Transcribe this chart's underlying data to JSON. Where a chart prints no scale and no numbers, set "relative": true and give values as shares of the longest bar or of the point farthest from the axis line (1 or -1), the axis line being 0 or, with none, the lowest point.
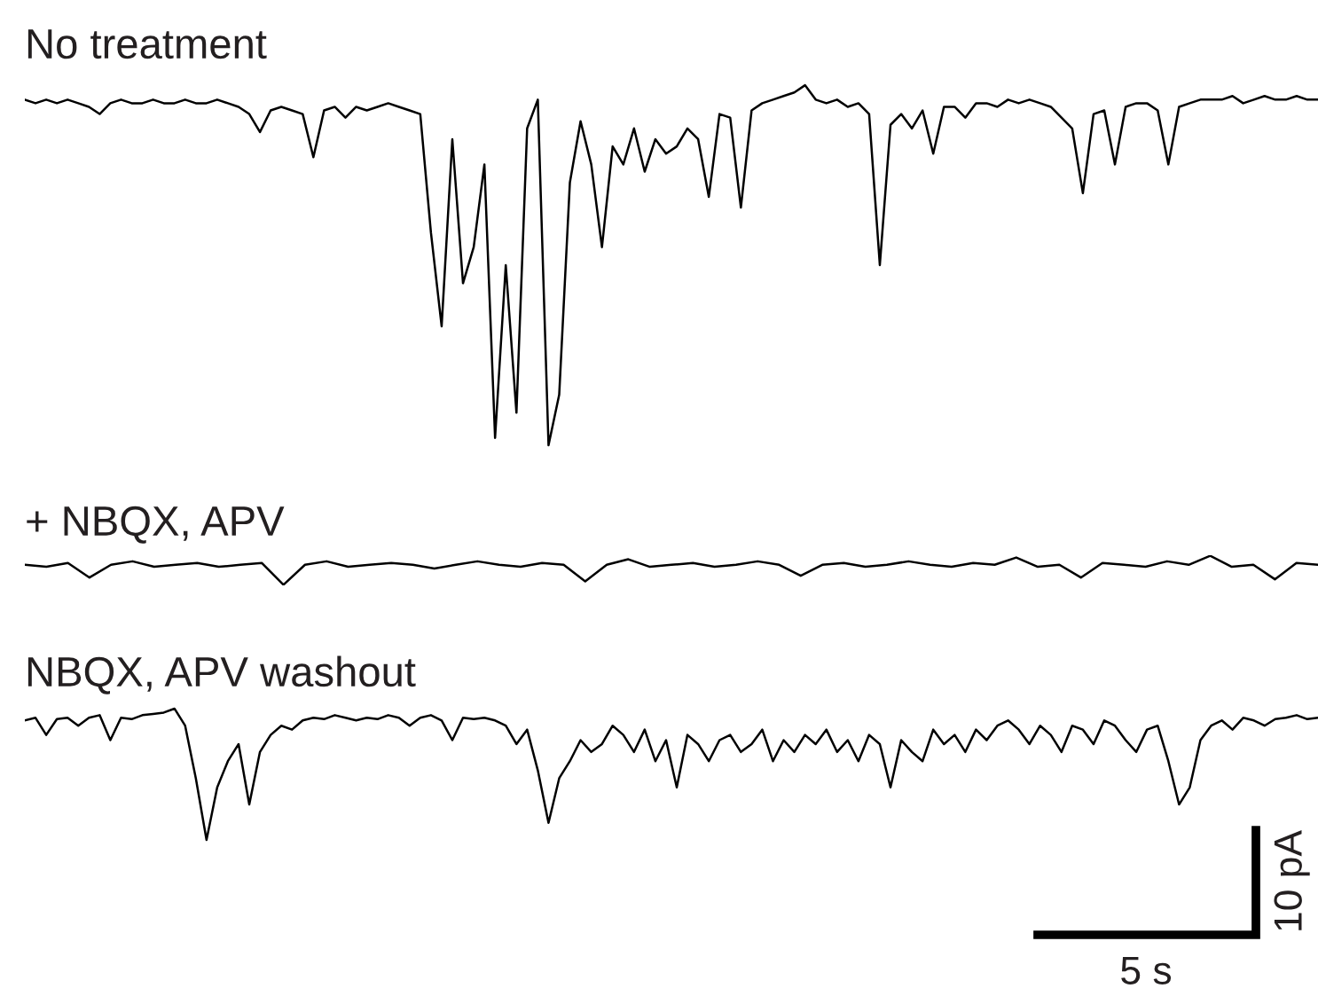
{
  "chart_data": [
    {
      "type": "line",
      "title": "No treatment",
      "relative": true,
      "categories": [
        null,
        null,
        null,
        null,
        null,
        null,
        null,
        null,
        null,
        null,
        null,
        null,
        null,
        null,
        null,
        null,
        null,
        null,
        null,
        null,
        null,
        null,
        null,
        null,
        null,
        null,
        null,
        null,
        null,
        null,
        null,
        null,
        null,
        null,
        null,
        null,
        null,
        null,
        null,
        null,
        null,
        null,
        null,
        null,
        null,
        null,
        null,
        null,
        null,
        null,
        null,
        null,
        null,
        null,
        null,
        null,
        null,
        null,
        null,
        null,
        null,
        null,
        null,
        null,
        null,
        null,
        null,
        null,
        null,
        null,
        null,
        null,
        null,
        null,
        null,
        null,
        null,
        null,
        null,
        null,
        null,
        null,
        null,
        null,
        null,
        null,
        null,
        null,
        null,
        null,
        null,
        null,
        null,
        null,
        null,
        null,
        null,
        null,
        null,
        null,
        null,
        null,
        null,
        null,
        null,
        null,
        null,
        null,
        null,
        null,
        null,
        null,
        null,
        null,
        null,
        null,
        null,
        null,
        null,
        null,
        null,
        null
      ],
      "series": [
        {
          "color": "#000000",
          "values": [
            0.96,
            0.95,
            0.96,
            0.95,
            0.96,
            0.95,
            0.94,
            0.92,
            0.95,
            0.96,
            0.95,
            0.95,
            0.96,
            0.95,
            0.95,
            0.96,
            0.95,
            0.95,
            0.96,
            0.95,
            0.94,
            0.92,
            0.87,
            0.93,
            0.94,
            0.93,
            0.92,
            0.8,
            0.93,
            0.94,
            0.91,
            0.94,
            0.93,
            0.94,
            0.95,
            0.94,
            0.93,
            0.92,
            0.59,
            0.33,
            0.85,
            0.45,
            0.55,
            0.78,
            0.02,
            0.5,
            0.09,
            0.88,
            0.96,
            0,
            0.14,
            0.73,
            0.9,
            0.78,
            0.55,
            0.83,
            0.78,
            0.88,
            0.76,
            0.85,
            0.81,
            0.83,
            0.88,
            0.85,
            0.69,
            0.92,
            0.91,
            0.66,
            0.93,
            0.95,
            0.96,
            0.97,
            0.98,
            1,
            0.96,
            0.95,
            0.96,
            0.94,
            0.95,
            0.92,
            0.5,
            0.89,
            0.92,
            0.88,
            0.93,
            0.81,
            0.94,
            0.94,
            0.91,
            0.95,
            0.95,
            0.94,
            0.96,
            0.95,
            0.96,
            0.95,
            0.94,
            0.91,
            0.88,
            0.7,
            0.92,
            0.93,
            0.78,
            0.94,
            0.95,
            0.95,
            0.93,
            0.78,
            0.94,
            0.95,
            0.96,
            0.96,
            0.96,
            0.97,
            0.95,
            0.96,
            0.97,
            0.96,
            0.96,
            0.97,
            0.96,
            0.96
          ]
        }
      ]
    },
    {
      "type": "line",
      "title": "+ NBQX, APV",
      "relative": true,
      "categories": [
        null,
        null,
        null,
        null,
        null,
        null,
        null,
        null,
        null,
        null,
        null,
        null,
        null,
        null,
        null,
        null,
        null,
        null,
        null,
        null,
        null,
        null,
        null,
        null,
        null,
        null,
        null,
        null,
        null,
        null,
        null,
        null,
        null,
        null,
        null,
        null,
        null,
        null,
        null,
        null,
        null,
        null,
        null,
        null,
        null,
        null,
        null,
        null,
        null,
        null,
        null,
        null,
        null,
        null,
        null,
        null,
        null,
        null,
        null,
        null,
        null
      ],
      "series": [
        {
          "color": "#000000",
          "values": [
            0.69,
            0.62,
            0.75,
            0.25,
            0.69,
            0.81,
            0.62,
            0.69,
            0.75,
            0.62,
            0.69,
            0.75,
            0,
            0.69,
            0.81,
            0.62,
            0.69,
            0.75,
            0.69,
            0.56,
            0.69,
            0.81,
            0.69,
            0.62,
            0.75,
            0.69,
            0.12,
            0.69,
            0.88,
            0.62,
            0.69,
            0.75,
            0.62,
            0.69,
            0.81,
            0.69,
            0.31,
            0.69,
            0.75,
            0.62,
            0.69,
            0.81,
            0.69,
            0.62,
            0.75,
            0.69,
            0.94,
            0.62,
            0.69,
            0.25,
            0.75,
            0.69,
            0.62,
            0.81,
            0.69,
            1,
            0.62,
            0.69,
            0.19,
            0.75,
            0.69
          ]
        }
      ]
    },
    {
      "type": "line",
      "title": "NBQX, APV washout",
      "relative": true,
      "annotations": [
        "10 pA",
        "5 s"
      ],
      "categories": [
        null,
        null,
        null,
        null,
        null,
        null,
        null,
        null,
        null,
        null,
        null,
        null,
        null,
        null,
        null,
        null,
        null,
        null,
        null,
        null,
        null,
        null,
        null,
        null,
        null,
        null,
        null,
        null,
        null,
        null,
        null,
        null,
        null,
        null,
        null,
        null,
        null,
        null,
        null,
        null,
        null,
        null,
        null,
        null,
        null,
        null,
        null,
        null,
        null,
        null,
        null,
        null,
        null,
        null,
        null,
        null,
        null,
        null,
        null,
        null,
        null,
        null,
        null,
        null,
        null,
        null,
        null,
        null,
        null,
        null,
        null,
        null,
        null,
        null,
        null,
        null,
        null,
        null,
        null,
        null,
        null,
        null,
        null,
        null,
        null,
        null,
        null,
        null,
        null,
        null,
        null,
        null,
        null,
        null,
        null,
        null,
        null,
        null,
        null,
        null,
        null,
        null,
        null,
        null,
        null,
        null,
        null,
        null,
        null,
        null,
        null,
        null,
        null,
        null,
        null,
        null,
        null,
        null,
        null,
        null,
        null,
        null
      ],
      "series": [
        {
          "color": "#000000",
          "values": [
            0.91,
            0.93,
            0.8,
            0.92,
            0.93,
            0.87,
            0.93,
            0.95,
            0.76,
            0.93,
            0.92,
            0.95,
            0.96,
            0.97,
            1,
            0.87,
            0.47,
            0,
            0.4,
            0.6,
            0.73,
            0.27,
            0.67,
            0.8,
            0.87,
            0.84,
            0.91,
            0.93,
            0.92,
            0.95,
            0.93,
            0.91,
            0.93,
            0.92,
            0.95,
            0.93,
            0.87,
            0.93,
            0.95,
            0.91,
            0.76,
            0.93,
            0.92,
            0.93,
            0.91,
            0.87,
            0.73,
            0.84,
            0.53,
            0.13,
            0.47,
            0.6,
            0.76,
            0.67,
            0.73,
            0.87,
            0.8,
            0.67,
            0.84,
            0.6,
            0.76,
            0.4,
            0.8,
            0.73,
            0.6,
            0.76,
            0.8,
            0.67,
            0.73,
            0.84,
            0.6,
            0.76,
            0.67,
            0.8,
            0.73,
            0.84,
            0.67,
            0.76,
            0.6,
            0.8,
            0.73,
            0.4,
            0.76,
            0.67,
            0.6,
            0.84,
            0.73,
            0.8,
            0.67,
            0.84,
            0.76,
            0.87,
            0.91,
            0.84,
            0.73,
            0.87,
            0.8,
            0.67,
            0.87,
            0.84,
            0.73,
            0.91,
            0.87,
            0.76,
            0.67,
            0.84,
            0.87,
            0.6,
            0.27,
            0.4,
            0.76,
            0.87,
            0.91,
            0.84,
            0.93,
            0.91,
            0.87,
            0.92,
            0.93,
            0.95,
            0.92,
            0.93
          ]
        }
      ]
    }
  ]
}
